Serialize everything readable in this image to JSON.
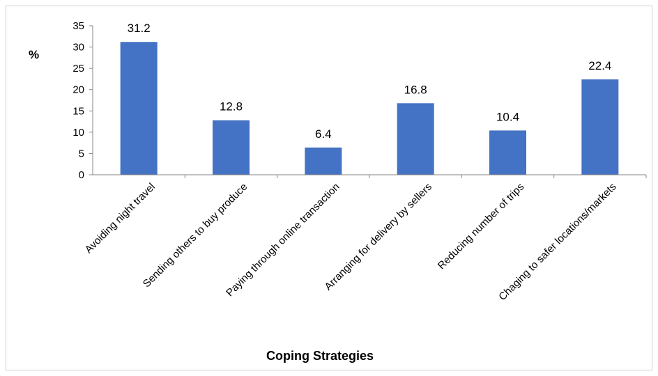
{
  "chart_data": {
    "type": "bar",
    "categories": [
      "Avoiding night travel",
      "Sending others to buy produce",
      "Paying through online transaction",
      "Arranging for delivery by sellers",
      "Reducing number of trips",
      "Chaging to safer locations/markets"
    ],
    "values": [
      31.2,
      12.8,
      6.4,
      16.8,
      10.4,
      22.4
    ],
    "value_labels": [
      "31.2",
      "12.8",
      "6.4",
      "16.8",
      "10.4",
      "22.4"
    ],
    "title": "",
    "xlabel": "Coping Strategies",
    "ylabel": "%",
    "ylim": [
      0,
      35
    ],
    "yticks": [
      0,
      5,
      10,
      15,
      20,
      25,
      30,
      35
    ],
    "grid": false,
    "legend": "none",
    "bar_color": "#4472C4"
  }
}
